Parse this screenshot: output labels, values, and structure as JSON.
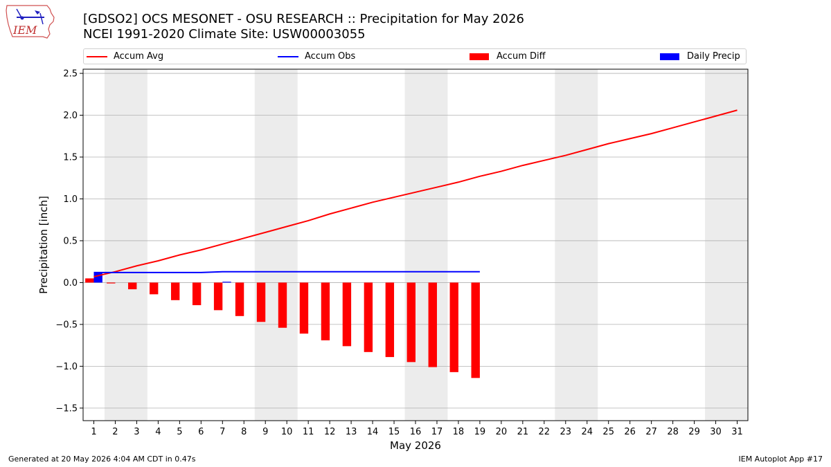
{
  "title": {
    "line1": "[GDSO2] OCS MESONET - OSU RESEARCH :: Precipitation for May 2026",
    "line2": "NCEI 1991-2020 Climate Site: USW00003055"
  },
  "logo": {
    "text": "IEM",
    "icon": "iem-iowa-logo"
  },
  "legend": [
    {
      "label": "Accum Avg",
      "color": "#ff0000",
      "kind": "line"
    },
    {
      "label": "Accum Obs",
      "color": "#0000ff",
      "kind": "line"
    },
    {
      "label": "Accum Diff",
      "color": "#ff0000",
      "kind": "bar"
    },
    {
      "label": "Daily Precip",
      "color": "#0000ff",
      "kind": "bar"
    }
  ],
  "footer": {
    "left": "Generated at 20 May 2026 4:04 AM CDT in 0.47s",
    "right": "IEM Autoplot App #17"
  },
  "chart_data": {
    "type": "bar",
    "xlabel": "May 2026",
    "ylabel": "Precipitation [inch]",
    "xlim": [
      0.5,
      31.5
    ],
    "ylim": [
      -1.65,
      2.55
    ],
    "yticks": [
      -1.5,
      -1.0,
      -0.5,
      0.0,
      0.5,
      1.0,
      1.5,
      2.0,
      2.5
    ],
    "ytick_labels": [
      "−1.5",
      "−1.0",
      "−0.5",
      "0.0",
      "0.5",
      "1.0",
      "1.5",
      "2.0",
      "2.5"
    ],
    "xticks": [
      1,
      2,
      3,
      4,
      5,
      6,
      7,
      8,
      9,
      10,
      11,
      12,
      13,
      14,
      15,
      16,
      17,
      18,
      19,
      20,
      21,
      22,
      23,
      24,
      25,
      26,
      27,
      28,
      29,
      30,
      31
    ],
    "weekend_shading": [
      [
        1.5,
        3.5
      ],
      [
        8.5,
        10.5
      ],
      [
        15.5,
        17.5
      ],
      [
        22.5,
        24.5
      ],
      [
        29.5,
        31.5
      ]
    ],
    "grid": "horizontal",
    "legend_position": "top",
    "series": [
      {
        "name": "Accum Avg",
        "type": "line",
        "color": "#ff0000",
        "x": [
          1,
          2,
          3,
          4,
          5,
          6,
          7,
          8,
          9,
          10,
          11,
          12,
          13,
          14,
          15,
          16,
          17,
          18,
          19,
          20,
          21,
          22,
          23,
          24,
          25,
          26,
          27,
          28,
          29,
          30,
          31
        ],
        "values": [
          0.07,
          0.13,
          0.2,
          0.26,
          0.33,
          0.39,
          0.46,
          0.53,
          0.6,
          0.67,
          0.74,
          0.82,
          0.89,
          0.96,
          1.02,
          1.08,
          1.14,
          1.2,
          1.27,
          1.33,
          1.4,
          1.46,
          1.52,
          1.59,
          1.66,
          1.72,
          1.78,
          1.85,
          1.92,
          1.99,
          2.06
        ]
      },
      {
        "name": "Accum Obs",
        "type": "line",
        "color": "#0000ff",
        "x": [
          1,
          2,
          3,
          4,
          5,
          6,
          7,
          8,
          9,
          10,
          11,
          12,
          13,
          14,
          15,
          16,
          17,
          18,
          19
        ],
        "values": [
          0.12,
          0.12,
          0.12,
          0.12,
          0.12,
          0.12,
          0.13,
          0.13,
          0.13,
          0.13,
          0.13,
          0.13,
          0.13,
          0.13,
          0.13,
          0.13,
          0.13,
          0.13,
          0.13
        ]
      },
      {
        "name": "Accum Diff",
        "type": "bar",
        "color": "#ff0000",
        "x": [
          1,
          2,
          3,
          4,
          5,
          6,
          7,
          8,
          9,
          10,
          11,
          12,
          13,
          14,
          15,
          16,
          17,
          18,
          19
        ],
        "values": [
          0.05,
          -0.01,
          -0.08,
          -0.14,
          -0.21,
          -0.27,
          -0.33,
          -0.4,
          -0.47,
          -0.54,
          -0.61,
          -0.69,
          -0.76,
          -0.83,
          -0.89,
          -0.95,
          -1.01,
          -1.07,
          -1.14
        ]
      },
      {
        "name": "Daily Precip",
        "type": "bar",
        "color": "#0000ff",
        "x": [
          1,
          2,
          3,
          4,
          5,
          6,
          7,
          8,
          9,
          10,
          11,
          12,
          13,
          14,
          15,
          16,
          17,
          18,
          19
        ],
        "values": [
          0.12,
          0,
          0,
          0,
          0,
          0,
          0.01,
          0,
          0,
          0,
          0,
          0,
          0,
          0,
          0,
          0,
          0,
          0,
          0
        ]
      }
    ]
  }
}
